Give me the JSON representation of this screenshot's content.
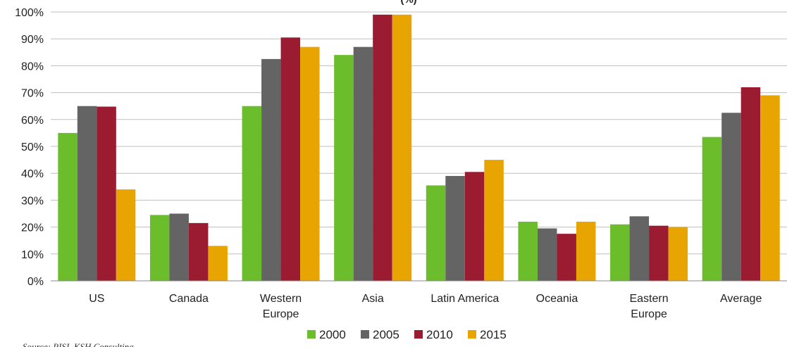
{
  "chart_data": {
    "type": "bar",
    "title_fragment": "(%)",
    "categories": [
      "US",
      "Canada",
      "Western Europe",
      "Asia",
      "Latin America",
      "Oceania",
      "Eastern Europe",
      "Average"
    ],
    "category_lines": [
      [
        "US"
      ],
      [
        "Canada"
      ],
      [
        "Western",
        "Europe"
      ],
      [
        "Asia"
      ],
      [
        "Latin America"
      ],
      [
        "Oceania"
      ],
      [
        "Eastern",
        "Europe"
      ],
      [
        "Average"
      ]
    ],
    "series": [
      {
        "name": "2000",
        "color": "#6cbd2c",
        "values": [
          55,
          24.5,
          65,
          84,
          35.5,
          22,
          21,
          53.5
        ]
      },
      {
        "name": "2005",
        "color": "#646464",
        "values": [
          65,
          25,
          82.5,
          87,
          39,
          19.5,
          24,
          62.5
        ]
      },
      {
        "name": "2010",
        "color": "#9b1b31",
        "values": [
          64.8,
          21.5,
          90.5,
          99,
          40.5,
          17.5,
          20.5,
          72
        ]
      },
      {
        "name": "2015",
        "color": "#e8a400",
        "values": [
          34,
          13,
          87,
          99,
          45,
          22,
          20,
          69
        ]
      }
    ],
    "ylim": [
      0,
      100
    ],
    "yticks": [
      "0%",
      "10%",
      "20%",
      "30%",
      "40%",
      "50%",
      "60%",
      "70%",
      "80%",
      "90%",
      "100%"
    ],
    "grid": true,
    "legend_position": "bottom",
    "xlabel": "",
    "ylabel": ""
  },
  "footer": {
    "source": "Source: RISI, KSH Consulting"
  }
}
